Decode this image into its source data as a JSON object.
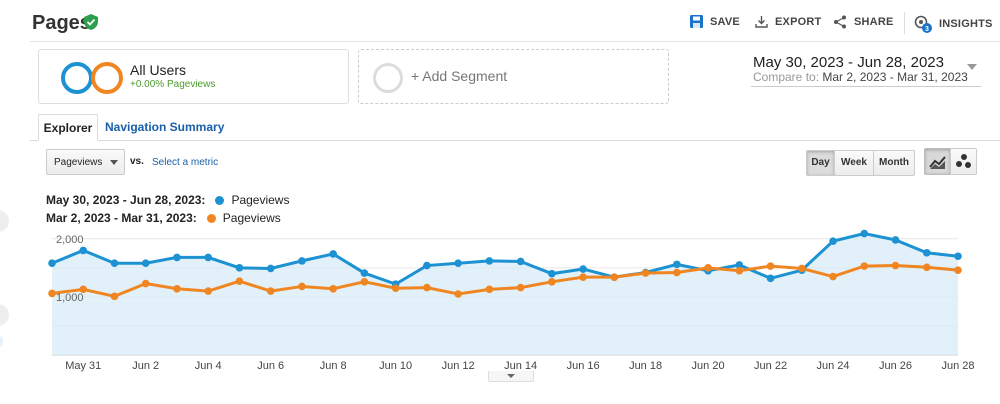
{
  "header": {
    "title": "Pages",
    "tools": [
      {
        "label": "SAVE",
        "icon": "save-icon"
      },
      {
        "label": "EXPORT",
        "icon": "export-icon"
      },
      {
        "label": "SHARE",
        "icon": "share-icon"
      },
      {
        "label": "INSIGHTS",
        "icon": "insights-icon",
        "badge": "3"
      }
    ]
  },
  "segments": {
    "primary": {
      "label": "All Users",
      "delta": "+0.00% Pageviews"
    },
    "add_label": "+ Add Segment"
  },
  "date_range": {
    "current": "May 30, 2023 - Jun 28, 2023",
    "compare_prefix": "Compare to:",
    "compare": "Mar 2, 2023 - Mar 31, 2023"
  },
  "tabs": [
    {
      "label": "Explorer",
      "active": true
    },
    {
      "label": "Navigation Summary",
      "active": false
    }
  ],
  "controls": {
    "metric": "Pageviews",
    "vs": "vs.",
    "select_metric": "Select a metric",
    "granularity": [
      "Day",
      "Week",
      "Month"
    ],
    "active_granularity": "Day"
  },
  "legend": [
    {
      "range": "May 30, 2023 - Jun 28, 2023:",
      "name": "Pageviews",
      "color": "#1c92d2"
    },
    {
      "range": "Mar 2, 2023 - Mar 31, 2023:",
      "name": "Pageviews",
      "color": "#f08622"
    }
  ],
  "colors": {
    "accent": "#1a5fa8",
    "current": "#1c92d2",
    "compare": "#f08622",
    "verified": "#2e9e4f"
  },
  "chart_data": {
    "type": "line",
    "y_ticks": [
      "2,000",
      "1,000"
    ],
    "y_tick_values": [
      2000,
      1000
    ],
    "ylim": [
      0,
      2100
    ],
    "x": [
      "May 30",
      "May 31",
      "Jun 1",
      "Jun 2",
      "Jun 3",
      "Jun 4",
      "Jun 5",
      "Jun 6",
      "Jun 7",
      "Jun 8",
      "Jun 9",
      "Jun 10",
      "Jun 11",
      "Jun 12",
      "Jun 13",
      "Jun 14",
      "Jun 15",
      "Jun 16",
      "Jun 17",
      "Jun 18",
      "Jun 19",
      "Jun 20",
      "Jun 21",
      "Jun 22",
      "Jun 23",
      "Jun 24",
      "Jun 25",
      "Jun 26",
      "Jun 27",
      "Jun 28"
    ],
    "x_tick_labels": [
      "May 31",
      "Jun 2",
      "Jun 4",
      "Jun 6",
      "Jun 8",
      "Jun 10",
      "Jun 12",
      "Jun 14",
      "Jun 16",
      "Jun 18",
      "Jun 20",
      "Jun 22",
      "Jun 24",
      "Jun 26",
      "Jun 28"
    ],
    "series": [
      {
        "name": "Pageviews",
        "range": "May 30, 2023 - Jun 28, 2023",
        "color": "#1c92d2",
        "fill": true,
        "values": [
          1580,
          1800,
          1580,
          1580,
          1680,
          1680,
          1500,
          1490,
          1620,
          1740,
          1410,
          1220,
          1540,
          1580,
          1620,
          1610,
          1400,
          1480,
          1340,
          1420,
          1560,
          1450,
          1550,
          1320,
          1460,
          1960,
          2090,
          1980,
          1760,
          1700
        ]
      },
      {
        "name": "Pageviews",
        "range": "Mar 2, 2023 - Mar 31, 2023",
        "color": "#f08622",
        "fill": false,
        "values": [
          1060,
          1130,
          1010,
          1230,
          1140,
          1100,
          1270,
          1100,
          1180,
          1140,
          1260,
          1150,
          1160,
          1050,
          1130,
          1160,
          1260,
          1340,
          1340,
          1410,
          1420,
          1500,
          1450,
          1530,
          1490,
          1350,
          1530,
          1540,
          1510,
          1460
        ]
      }
    ],
    "grid": true,
    "legend_position": "top-left"
  }
}
